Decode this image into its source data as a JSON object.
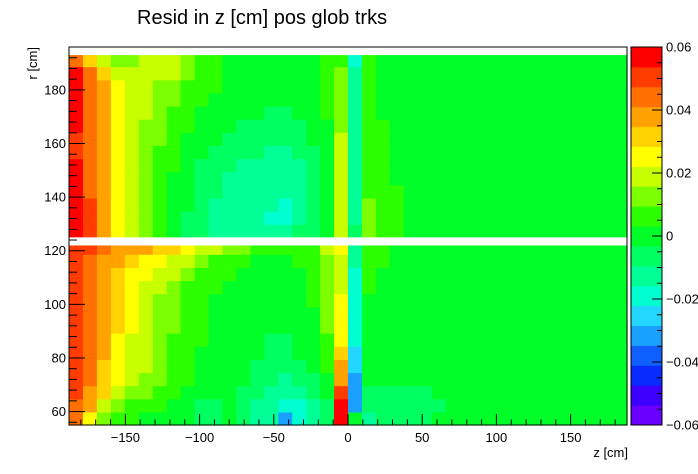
{
  "chart_data": {
    "type": "heatmap",
    "title": "Resid in z [cm] pos glob trks",
    "xlabel": "z [cm]",
    "ylabel": "r [cm]",
    "xlim": [
      -188,
      188
    ],
    "ylim": [
      55,
      196
    ],
    "x_ticks": [
      -150,
      -100,
      -50,
      0,
      50,
      100,
      150
    ],
    "x_tick_labels": [
      "−150",
      "−100",
      "−50",
      "0",
      "50",
      "100",
      "150"
    ],
    "y_ticks": [
      60,
      80,
      100,
      120,
      140,
      160,
      180
    ],
    "y_tick_labels": [
      "60",
      "80",
      "100",
      "120",
      "140",
      "160",
      "180"
    ],
    "zlim": [
      -0.06,
      0.06
    ],
    "colorbar_ticks": [
      -0.06,
      -0.04,
      -0.02,
      0,
      0.02,
      0.04,
      0.06
    ],
    "colorbar_tick_labels": [
      "−0.06",
      "−0.04",
      "−0.02",
      "0",
      "0.02",
      "0.04",
      "0.06"
    ],
    "palette": [
      "#6a00ff",
      "#3b00ff",
      "#0a2bff",
      "#0f60ff",
      "#1aa0ff",
      "#22d7ff",
      "#00ffd0",
      "#00ff96",
      "#00ff60",
      "#00ff28",
      "#2bff00",
      "#7cff00",
      "#c8ff00",
      "#ffff00",
      "#ffd200",
      "#ffa200",
      "#ff7000",
      "#ff3c00",
      "#ff0000"
    ],
    "gaps": [
      [
        122,
        125
      ],
      [
        193,
        195
      ]
    ],
    "x_edges": [
      -188,
      -178.6,
      -169.2,
      -159.8,
      -150.4,
      -141,
      -131.6,
      -122.2,
      -112.8,
      -103.4,
      -94,
      -84.6,
      -75.2,
      -65.8,
      -56.4,
      -47,
      -37.6,
      -28.2,
      -18.8,
      -9.4,
      0,
      9.4,
      18.8,
      28.2,
      37.6,
      47,
      56.4,
      65.8,
      75.2,
      84.6,
      94,
      103.4,
      112.8,
      122.2,
      131.6,
      141,
      150.4,
      159.8,
      169.2,
      178.6,
      188
    ],
    "y_edges": [
      55,
      59.9,
      64.8,
      69.7,
      74.6,
      79.5,
      84.4,
      89.3,
      94.2,
      99.1,
      104,
      108.9,
      113.8,
      118.7,
      122,
      125,
      129.9,
      134.8,
      139.7,
      144.6,
      149.5,
      154.4,
      159.3,
      164.2,
      169.1,
      174,
      178.9,
      183.8,
      188.7,
      193
    ],
    "values": [
      [
        0.045,
        0.027,
        0.013,
        0.008,
        0.005,
        0.003,
        0.003,
        0.001,
        -0.003,
        -0.004,
        -0.004,
        -0.003,
        -0.007,
        -0.012,
        -0.015,
        -0.03,
        -0.021,
        -0.014,
        -0.006,
        0.06,
        0,
        -0.01,
        -0.004,
        -0.006,
        -0.005,
        -0.005,
        -0.003,
        -0.002,
        -0.002,
        -0.002,
        -0.003,
        -0.002,
        -0.003,
        -0.003,
        -0.002,
        -0.002,
        -0.003,
        -0.002,
        -0.003,
        -0.002
      ],
      [
        0.045,
        0.035,
        0.022,
        0.012,
        0.007,
        0.005,
        0.004,
        0.002,
        -0.002,
        -0.004,
        -0.004,
        -0.003,
        -0.006,
        -0.01,
        -0.015,
        -0.02,
        -0.016,
        -0.011,
        -0.004,
        0.06,
        -0.03,
        -0.009,
        -0.005,
        -0.005,
        -0.005,
        -0.004,
        -0.004,
        -0.002,
        -0.002,
        -0.003,
        -0.002,
        -0.003,
        -0.002,
        -0.002,
        -0.003,
        -0.002,
        -0.002,
        -0.003,
        -0.002,
        -0.003
      ],
      [
        0.048,
        0.04,
        0.03,
        0.02,
        0.014,
        0.011,
        0.008,
        0.006,
        0.002,
        0,
        -0.002,
        -0.003,
        -0.005,
        -0.008,
        -0.012,
        -0.014,
        -0.011,
        -0.008,
        -0.002,
        0.052,
        -0.032,
        -0.005,
        -0.004,
        -0.004,
        -0.004,
        -0.004,
        -0.003,
        -0.002,
        -0.002,
        -0.002,
        -0.003,
        -0.002,
        -0.002,
        -0.003,
        -0.002,
        -0.002,
        -0.003,
        -0.002,
        -0.003,
        -0.002
      ],
      [
        0.05,
        0.042,
        0.032,
        0.024,
        0.018,
        0.014,
        0.011,
        0.008,
        0.004,
        0.002,
        0,
        -0.002,
        -0.003,
        -0.006,
        -0.009,
        -0.01,
        -0.008,
        -0.005,
        0.002,
        0.04,
        -0.03,
        -0.002,
        -0.002,
        -0.003,
        -0.003,
        -0.002,
        -0.003,
        -0.002,
        -0.002,
        -0.002,
        -0.002,
        -0.003,
        -0.002,
        -0.002,
        -0.003,
        -0.002,
        -0.002,
        -0.003,
        -0.002,
        -0.002
      ],
      [
        0.05,
        0.043,
        0.034,
        0.026,
        0.02,
        0.016,
        0.012,
        0.009,
        0.005,
        0.003,
        0.001,
        -0.001,
        -0.002,
        -0.004,
        -0.007,
        -0.007,
        -0.005,
        -0.002,
        0.005,
        0.035,
        -0.027,
        -0.001,
        -0.002,
        -0.002,
        -0.002,
        -0.002,
        -0.002,
        -0.002,
        -0.002,
        -0.002,
        -0.002,
        -0.002,
        -0.002,
        -0.002,
        -0.002,
        -0.002,
        -0.002,
        -0.002,
        -0.002,
        -0.002
      ],
      [
        0.051,
        0.044,
        0.035,
        0.027,
        0.021,
        0.016,
        0.012,
        0.009,
        0.006,
        0.003,
        0.001,
        0,
        -0.001,
        -0.003,
        -0.005,
        -0.005,
        -0.003,
        0,
        0.007,
        0.03,
        -0.025,
        0,
        -0.001,
        -0.002,
        -0.002,
        -0.002,
        -0.002,
        -0.002,
        -0.002,
        -0.002,
        -0.002,
        -0.002,
        -0.002,
        -0.002,
        -0.002,
        -0.002,
        -0.002,
        -0.002,
        -0.002,
        -0.002
      ],
      [
        0.05,
        0.044,
        0.035,
        0.028,
        0.022,
        0.017,
        0.012,
        0.009,
        0.006,
        0.004,
        0.002,
        0,
        -0.001,
        -0.002,
        -0.004,
        -0.004,
        -0.002,
        0.001,
        0.008,
        0.028,
        -0.022,
        0,
        -0.001,
        -0.002,
        -0.002,
        -0.002,
        -0.002,
        -0.002,
        -0.002,
        -0.002,
        -0.002,
        -0.002,
        -0.002,
        -0.002,
        -0.002,
        -0.002,
        -0.002,
        -0.002,
        -0.002,
        -0.002
      ],
      [
        0.05,
        0.044,
        0.036,
        0.029,
        0.023,
        0.018,
        0.013,
        0.01,
        0.007,
        0.004,
        0.002,
        0.001,
        0,
        -0.002,
        -0.003,
        -0.003,
        -0.001,
        0.002,
        0.01,
        0.026,
        -0.02,
        0.001,
        -0.001,
        -0.001,
        -0.002,
        -0.002,
        -0.002,
        -0.002,
        -0.002,
        -0.002,
        -0.002,
        -0.002,
        -0.002,
        -0.002,
        -0.002,
        -0.002,
        -0.002,
        -0.002,
        -0.002,
        -0.002
      ],
      [
        0.049,
        0.043,
        0.036,
        0.03,
        0.024,
        0.019,
        0.014,
        0.011,
        0.008,
        0.005,
        0.003,
        0.001,
        0,
        -0.001,
        -0.002,
        -0.002,
        0,
        0.003,
        0.011,
        0.024,
        -0.02,
        0.002,
        0,
        -0.001,
        -0.001,
        -0.002,
        -0.002,
        -0.002,
        -0.002,
        -0.002,
        -0.002,
        -0.002,
        -0.002,
        -0.002,
        -0.002,
        -0.002,
        -0.002,
        -0.002,
        -0.002,
        -0.002
      ],
      [
        0.049,
        0.043,
        0.036,
        0.03,
        0.025,
        0.02,
        0.015,
        0.012,
        0.008,
        0.006,
        0.003,
        0.002,
        0.001,
        0,
        -0.001,
        -0.001,
        0.001,
        0.004,
        0.012,
        0.023,
        -0.018,
        0.003,
        0.001,
        0,
        -0.001,
        -0.001,
        -0.002,
        -0.002,
        -0.002,
        -0.002,
        -0.002,
        -0.002,
        -0.002,
        -0.002,
        -0.002,
        -0.002,
        -0.002,
        -0.002,
        -0.002,
        -0.002
      ],
      [
        0.05,
        0.044,
        0.037,
        0.031,
        0.026,
        0.021,
        0.016,
        0.012,
        0.009,
        0.006,
        0.004,
        0.002,
        0.001,
        0,
        0,
        0,
        0.002,
        0.005,
        0.013,
        0.022,
        -0.017,
        0.004,
        0.002,
        0,
        0,
        -0.001,
        -0.001,
        -0.002,
        -0.002,
        -0.002,
        -0.002,
        -0.002,
        -0.002,
        -0.002,
        -0.002,
        -0.002,
        -0.002,
        -0.002,
        -0.002,
        -0.002
      ],
      [
        0.05,
        0.045,
        0.038,
        0.032,
        0.028,
        0.024,
        0.02,
        0.016,
        0.012,
        0.009,
        0.006,
        0.004,
        0.002,
        0.001,
        0.001,
        0.001,
        0.003,
        0.006,
        0.014,
        0.022,
        -0.016,
        0.005,
        0.003,
        0.001,
        0,
        -0.001,
        -0.001,
        -0.002,
        -0.002,
        -0.002,
        -0.002,
        -0.002,
        -0.002,
        -0.002,
        -0.002,
        -0.002,
        -0.002,
        -0.002,
        -0.002,
        -0.002
      ],
      [
        0.051,
        0.046,
        0.04,
        0.035,
        0.031,
        0.028,
        0.025,
        0.021,
        0.017,
        0.013,
        0.009,
        0.006,
        0.004,
        0.002,
        0.002,
        0.002,
        0.004,
        0.007,
        0.015,
        0.022,
        -0.015,
        0.006,
        0.004,
        0.002,
        0.001,
        0,
        -0.001,
        -0.001,
        -0.002,
        -0.002,
        -0.002,
        -0.002,
        -0.002,
        -0.002,
        -0.002,
        -0.002,
        -0.002,
        -0.002,
        -0.002,
        -0.002
      ],
      [
        0.052,
        0.048,
        0.043,
        0.038,
        0.036,
        0.035,
        0.033,
        0.03,
        0.026,
        0.022,
        0.018,
        0.014,
        0.01,
        0.006,
        0.004,
        0.004,
        0.006,
        0.009,
        0.017,
        0.023,
        -0.014,
        0.007,
        0.005,
        0.003,
        0.002,
        0.001,
        0,
        -0.001,
        -0.002,
        -0.002,
        -0.002,
        -0.002,
        -0.002,
        -0.002,
        -0.002,
        -0.002,
        -0.002,
        -0.002,
        -0.002,
        -0.002
      ],
      null,
      [
        0.058,
        0.05,
        0.038,
        0.026,
        0.016,
        0.01,
        0.006,
        0.002,
        -0.004,
        -0.008,
        -0.01,
        -0.012,
        -0.013,
        -0.014,
        -0.014,
        -0.012,
        -0.008,
        -0.004,
        0.002,
        0.02,
        -0.008,
        0.012,
        0.007,
        0.004,
        0.003,
        0.002,
        0.002,
        0.001,
        0.001,
        0.001,
        0.001,
        0.001,
        0.001,
        0.001,
        0.001,
        0.001,
        0.001,
        0.001,
        0.001,
        0.001
      ],
      [
        0.057,
        0.049,
        0.038,
        0.027,
        0.018,
        0.011,
        0.006,
        0.002,
        -0.004,
        -0.008,
        -0.011,
        -0.013,
        -0.014,
        -0.015,
        -0.016,
        -0.016,
        -0.012,
        -0.007,
        0,
        0.02,
        -0.01,
        0.012,
        0.008,
        0.005,
        0.003,
        0.002,
        0.002,
        0.001,
        0.001,
        0.001,
        0.001,
        0.001,
        0.001,
        0.001,
        0.001,
        0.001,
        0.001,
        0.001,
        0.001,
        0.001
      ],
      [
        0.056,
        0.048,
        0.037,
        0.027,
        0.018,
        0.012,
        0.007,
        0.003,
        -0.003,
        -0.007,
        -0.01,
        -0.012,
        -0.013,
        -0.014,
        -0.015,
        -0.016,
        -0.013,
        -0.009,
        -0.002,
        0.02,
        -0.011,
        0.01,
        0.007,
        0.004,
        0.003,
        0.002,
        0.001,
        0.001,
        0,
        0,
        0,
        0.001,
        0,
        0,
        0.001,
        0,
        0,
        0.001,
        0,
        0
      ],
      [
        0.055,
        0.047,
        0.036,
        0.026,
        0.018,
        0.012,
        0.007,
        0.003,
        -0.002,
        -0.006,
        -0.009,
        -0.011,
        -0.012,
        -0.013,
        -0.014,
        -0.014,
        -0.012,
        -0.008,
        -0.002,
        0.02,
        -0.012,
        0.009,
        0.006,
        0.004,
        0.002,
        0.001,
        0.001,
        0,
        0,
        0,
        0,
        0,
        0,
        0,
        0,
        0,
        0,
        0,
        0,
        0
      ],
      [
        0.055,
        0.046,
        0.035,
        0.025,
        0.017,
        0.012,
        0.007,
        0.003,
        -0.001,
        -0.005,
        -0.008,
        -0.01,
        -0.011,
        -0.012,
        -0.013,
        -0.013,
        -0.011,
        -0.007,
        -0.001,
        0.019,
        -0.012,
        0.008,
        0.005,
        0.003,
        0.002,
        0.001,
        0,
        0,
        -0.001,
        -0.001,
        -0.001,
        -0.001,
        -0.001,
        -0.001,
        -0.001,
        -0.001,
        -0.001,
        -0.001,
        -0.001,
        -0.001
      ],
      [
        0.054,
        0.046,
        0.035,
        0.025,
        0.017,
        0.012,
        0.008,
        0.004,
        0,
        -0.004,
        -0.007,
        -0.009,
        -0.01,
        -0.011,
        -0.012,
        -0.012,
        -0.01,
        -0.006,
        0,
        0.018,
        -0.012,
        0.008,
        0.005,
        0.003,
        0.002,
        0.001,
        0,
        -0.001,
        -0.001,
        -0.001,
        -0.001,
        -0.001,
        -0.001,
        -0.001,
        -0.001,
        -0.001,
        -0.001,
        -0.001,
        -0.001,
        -0.001
      ],
      [
        0.053,
        0.045,
        0.035,
        0.026,
        0.018,
        0.013,
        0.009,
        0.005,
        0.001,
        -0.002,
        -0.005,
        -0.007,
        -0.008,
        -0.009,
        -0.01,
        -0.01,
        -0.008,
        -0.005,
        0.001,
        0.017,
        -0.012,
        0.007,
        0.004,
        0.003,
        0.002,
        0.001,
        0,
        -0.001,
        -0.001,
        -0.001,
        -0.001,
        -0.001,
        -0.001,
        -0.001,
        -0.001,
        -0.001,
        -0.001,
        -0.001,
        -0.001,
        -0.001
      ],
      [
        0.053,
        0.045,
        0.035,
        0.026,
        0.019,
        0.014,
        0.01,
        0.006,
        0.002,
        -0.001,
        -0.003,
        -0.005,
        -0.006,
        -0.007,
        -0.008,
        -0.008,
        -0.006,
        -0.003,
        0.002,
        0.016,
        -0.012,
        0.007,
        0.004,
        0.002,
        0.001,
        0,
        0,
        -0.001,
        -0.001,
        -0.001,
        -0.001,
        -0.001,
        -0.001,
        -0.001,
        -0.001,
        -0.001,
        -0.001,
        -0.001,
        -0.001,
        -0.001
      ],
      [
        0.054,
        0.045,
        0.035,
        0.027,
        0.02,
        0.015,
        0.011,
        0.007,
        0.004,
        0.001,
        -0.001,
        -0.003,
        -0.004,
        -0.005,
        -0.006,
        -0.006,
        -0.004,
        -0.002,
        0.003,
        0.015,
        -0.012,
        0.006,
        0.004,
        0.002,
        0.001,
        0,
        0,
        -0.001,
        -0.001,
        -0.001,
        -0.001,
        -0.001,
        -0.001,
        -0.001,
        -0.001,
        -0.001,
        -0.001,
        -0.001,
        -0.001,
        -0.001
      ],
      [
        0.055,
        0.046,
        0.035,
        0.027,
        0.021,
        0.016,
        0.012,
        0.009,
        0.005,
        0.003,
        0.001,
        -0.001,
        -0.002,
        -0.003,
        -0.004,
        -0.004,
        -0.003,
        -0.001,
        0.004,
        0.014,
        -0.012,
        0.006,
        0.003,
        0.002,
        0.001,
        0,
        0,
        0,
        -0.001,
        -0.001,
        -0.001,
        -0.001,
        -0.001,
        -0.001,
        -0.001,
        -0.001,
        -0.001,
        -0.001,
        -0.001,
        -0.001
      ],
      [
        0.055,
        0.046,
        0.035,
        0.027,
        0.021,
        0.017,
        0.013,
        0.01,
        0.007,
        0.004,
        0.002,
        0.001,
        0,
        -0.001,
        -0.002,
        -0.002,
        -0.001,
        0.001,
        0.005,
        0.013,
        -0.013,
        0.005,
        0.003,
        0.002,
        0.001,
        0,
        0,
        0,
        0,
        0,
        0,
        0,
        0,
        0,
        0,
        0,
        0,
        0,
        0,
        0
      ],
      [
        0.056,
        0.046,
        0.035,
        0.027,
        0.022,
        0.018,
        0.015,
        0.012,
        0.009,
        0.006,
        0.004,
        0.002,
        0.001,
        0,
        -0.001,
        -0.001,
        0,
        0.002,
        0.006,
        0.012,
        -0.013,
        0.005,
        0.003,
        0.002,
        0.001,
        0,
        0,
        0,
        0,
        0,
        0,
        0,
        0,
        0,
        0,
        0,
        0,
        0,
        0,
        0
      ],
      [
        0.057,
        0.045,
        0.03,
        0.02,
        0.018,
        0.02,
        0.022,
        0.02,
        0.014,
        0.008,
        0.004,
        0.003,
        0.002,
        0.001,
        0.001,
        0,
        0.001,
        0.003,
        0.005,
        0.01,
        -0.015,
        0.005,
        0.003,
        0.002,
        0.001,
        0,
        0,
        0,
        0,
        0,
        0,
        0,
        0,
        0,
        0,
        0,
        0,
        0,
        0,
        0
      ],
      [
        0.045,
        0.032,
        0.02,
        0.014,
        0.014,
        0.016,
        0.018,
        0.016,
        0.012,
        0.008,
        0.004,
        0.003,
        0.002,
        0.001,
        0.001,
        0,
        0,
        0.002,
        0.004,
        0.005,
        -0.016,
        0.004,
        0.002,
        0.001,
        0.001,
        0,
        0,
        0,
        0,
        0,
        0,
        0,
        0,
        0,
        0,
        0,
        0,
        0,
        0,
        0
      ]
    ]
  }
}
